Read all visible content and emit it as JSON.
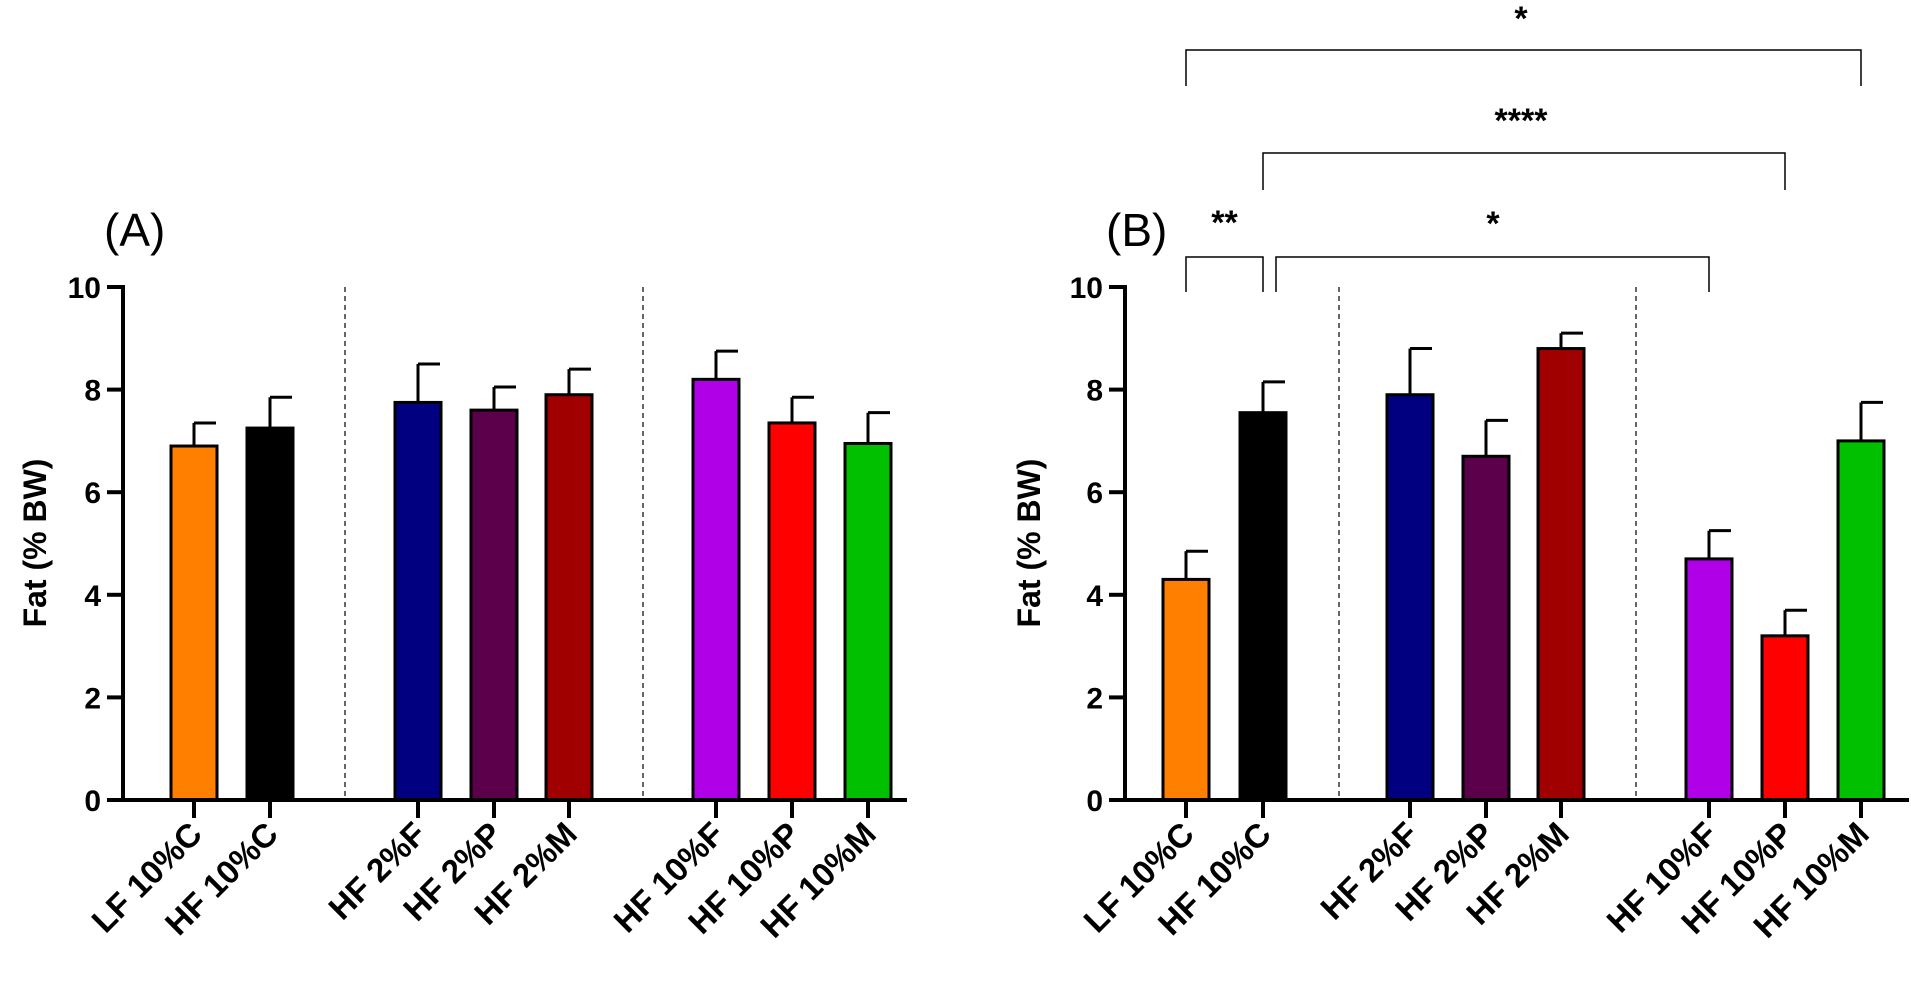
{
  "chart_data": [
    {
      "type": "bar",
      "panel_label": "(A)",
      "ylabel": "Fat (% BW)",
      "ylim": [
        0,
        10
      ],
      "yticks": [
        0,
        2,
        4,
        6,
        8,
        10
      ],
      "ytick_labels": [
        "0",
        "2",
        "4",
        "6",
        "8",
        "10"
      ],
      "groups": [
        [
          "LF 10%C",
          "HF 10%C"
        ],
        [
          "HF 2%F",
          "HF 2%P",
          "HF 2%M"
        ],
        [
          "HF 10%F",
          "HF 10%P",
          "HF 10%M"
        ]
      ],
      "categories": [
        "LF 10%C",
        "HF 10%C",
        "HF 2%F",
        "HF 2%P",
        "HF 2%M",
        "HF 10%F",
        "HF 10%P",
        "HF 10%M"
      ],
      "values": [
        6.9,
        7.25,
        7.75,
        7.6,
        7.9,
        8.2,
        7.35,
        6.95
      ],
      "errors": [
        0.45,
        0.6,
        0.75,
        0.45,
        0.5,
        0.55,
        0.5,
        0.6
      ],
      "colors": [
        "#ff8000",
        "#000000",
        "#000080",
        "#5c004c",
        "#a00000",
        "#b000e8",
        "#ff0000",
        "#00c000"
      ],
      "significance": []
    },
    {
      "type": "bar",
      "panel_label": "(B)",
      "ylabel": "Fat (% BW)",
      "ylim": [
        0,
        10
      ],
      "yticks": [
        0,
        2,
        4,
        6,
        8,
        10
      ],
      "ytick_labels": [
        "0",
        "2",
        "4",
        "6",
        "8",
        "10"
      ],
      "groups": [
        [
          "LF 10%C",
          "HF 10%C"
        ],
        [
          "HF 2%F",
          "HF 2%P",
          "HF 2%M"
        ],
        [
          "HF 10%F",
          "HF 10%P",
          "HF 10%M"
        ]
      ],
      "categories": [
        "LF 10%C",
        "HF 10%C",
        "HF 2%F",
        "HF 2%P",
        "HF 2%M",
        "HF 10%F",
        "HF 10%P",
        "HF 10%M"
      ],
      "values": [
        4.3,
        7.55,
        7.9,
        6.7,
        8.8,
        4.7,
        3.2,
        7.0
      ],
      "errors": [
        0.55,
        0.6,
        0.9,
        0.7,
        0.3,
        0.55,
        0.5,
        0.75
      ],
      "colors": [
        "#ff8000",
        "#000000",
        "#000080",
        "#5c004c",
        "#a00000",
        "#b000e8",
        "#ff0000",
        "#00c000"
      ],
      "significance": [
        {
          "from": "LF 10%C",
          "to": "HF 10%C",
          "label": "**"
        },
        {
          "from": "HF 10%C",
          "to": "HF 10%F",
          "label": "*"
        },
        {
          "from": "HF 10%C",
          "to": "HF 10%P",
          "label": "****"
        },
        {
          "from": "LF 10%C",
          "to": "HF 10%M",
          "label": "*"
        }
      ]
    }
  ]
}
